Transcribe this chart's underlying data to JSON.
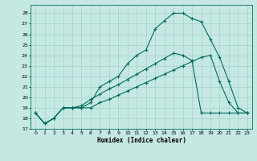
{
  "xlabel": "Humidex (Indice chaleur)",
  "bg_color": "#c5e8e3",
  "grid_color": "#9dccc6",
  "line_color": "#006b5e",
  "xlim": [
    -0.5,
    23.5
  ],
  "ylim": [
    17.0,
    28.8
  ],
  "yticks": [
    17,
    18,
    19,
    20,
    21,
    22,
    23,
    24,
    25,
    26,
    27,
    28
  ],
  "xticks": [
    0,
    1,
    2,
    3,
    4,
    5,
    6,
    7,
    8,
    9,
    10,
    11,
    12,
    13,
    14,
    15,
    16,
    17,
    18,
    19,
    20,
    21,
    22,
    23
  ],
  "curve1_x": [
    0,
    1,
    2,
    3,
    4,
    5,
    6,
    7,
    8,
    9,
    10,
    11,
    12,
    13,
    14,
    15,
    16,
    17,
    18,
    19,
    20,
    21,
    22,
    23
  ],
  "curve1_y": [
    18.5,
    17.5,
    18.0,
    19.0,
    19.0,
    19.0,
    19.5,
    21.0,
    21.5,
    22.0,
    23.2,
    24.0,
    24.5,
    26.5,
    27.3,
    28.0,
    28.0,
    27.5,
    27.2,
    25.5,
    23.8,
    21.5,
    19.0,
    18.5
  ],
  "curve2_x": [
    0,
    1,
    2,
    3,
    4,
    5,
    6,
    7,
    8,
    9,
    10,
    11,
    12,
    13,
    14,
    15,
    16,
    17,
    18,
    19,
    20,
    21,
    22,
    23
  ],
  "curve2_y": [
    18.5,
    17.5,
    18.0,
    19.0,
    19.0,
    19.2,
    19.8,
    20.3,
    20.8,
    21.2,
    21.7,
    22.2,
    22.7,
    23.2,
    23.7,
    24.2,
    24.0,
    23.5,
    18.5,
    18.5,
    18.5,
    18.5,
    18.5,
    18.5
  ],
  "curve3_x": [
    0,
    1,
    2,
    3,
    4,
    5,
    6,
    7,
    8,
    9,
    10,
    11,
    12,
    13,
    14,
    15,
    16,
    17,
    18,
    19,
    20,
    21,
    22,
    23
  ],
  "curve3_y": [
    18.5,
    17.5,
    18.0,
    19.0,
    19.0,
    19.0,
    19.0,
    19.5,
    19.8,
    20.2,
    20.6,
    21.0,
    21.4,
    21.8,
    22.2,
    22.6,
    23.0,
    23.4,
    23.8,
    24.0,
    21.5,
    19.5,
    18.5,
    18.5
  ]
}
